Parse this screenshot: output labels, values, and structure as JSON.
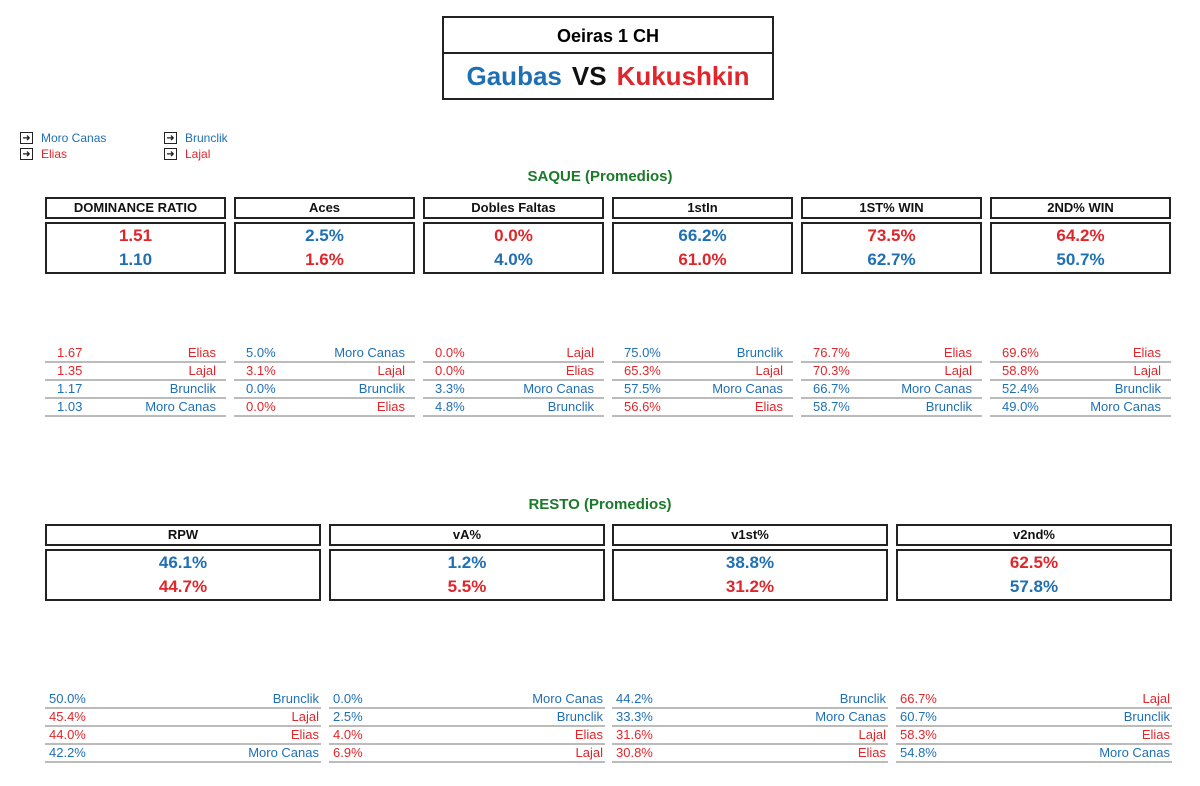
{
  "header": {
    "tournament": "Oeiras 1 CH",
    "player1": "Gaubas",
    "vs": "VS",
    "player2": "Kukushkin"
  },
  "legend": [
    {
      "label": "Moro Canas",
      "color": "blue"
    },
    {
      "label": "Elias",
      "color": "red"
    },
    {
      "label": "Brunclik",
      "color": "blue"
    },
    {
      "label": "Lajal",
      "color": "red"
    }
  ],
  "saque": {
    "title": "SAQUE (Promedios)",
    "stats": [
      {
        "label": "DOMINANCE RATIO",
        "v1": "1.51",
        "c1": "red",
        "v2": "1.10",
        "c2": "blue",
        "rank": [
          [
            "1.67",
            "Elias",
            "red"
          ],
          [
            "1.35",
            "Lajal",
            "red"
          ],
          [
            "1.17",
            "Brunclik",
            "blue"
          ],
          [
            "1.03",
            "Moro Canas",
            "blue"
          ]
        ]
      },
      {
        "label": "Aces",
        "v1": "2.5%",
        "c1": "blue",
        "v2": "1.6%",
        "c2": "red",
        "rank": [
          [
            "5.0%",
            "Moro Canas",
            "blue"
          ],
          [
            "3.1%",
            "Lajal",
            "red"
          ],
          [
            "0.0%",
            "Brunclik",
            "blue"
          ],
          [
            "0.0%",
            "Elias",
            "red"
          ]
        ]
      },
      {
        "label": "Dobles Faltas",
        "v1": "0.0%",
        "c1": "red",
        "v2": "4.0%",
        "c2": "blue",
        "rank": [
          [
            "0.0%",
            "Lajal",
            "red"
          ],
          [
            "0.0%",
            "Elias",
            "red"
          ],
          [
            "3.3%",
            "Moro Canas",
            "blue"
          ],
          [
            "4.8%",
            "Brunclik",
            "blue"
          ]
        ]
      },
      {
        "label": "1stIn",
        "v1": "66.2%",
        "c1": "blue",
        "v2": "61.0%",
        "c2": "red",
        "rank": [
          [
            "75.0%",
            "Brunclik",
            "blue"
          ],
          [
            "65.3%",
            "Lajal",
            "red"
          ],
          [
            "57.5%",
            "Moro Canas",
            "blue"
          ],
          [
            "56.6%",
            "Elias",
            "red"
          ]
        ]
      },
      {
        "label": "1ST% WIN",
        "v1": "73.5%",
        "c1": "red",
        "v2": "62.7%",
        "c2": "blue",
        "rank": [
          [
            "76.7%",
            "Elias",
            "red"
          ],
          [
            "70.3%",
            "Lajal",
            "red"
          ],
          [
            "66.7%",
            "Moro Canas",
            "blue"
          ],
          [
            "58.7%",
            "Brunclik",
            "blue"
          ]
        ]
      },
      {
        "label": "2ND% WIN",
        "v1": "64.2%",
        "c1": "red",
        "v2": "50.7%",
        "c2": "blue",
        "rank": [
          [
            "69.6%",
            "Elias",
            "red"
          ],
          [
            "58.8%",
            "Lajal",
            "red"
          ],
          [
            "52.4%",
            "Brunclik",
            "blue"
          ],
          [
            "49.0%",
            "Moro Canas",
            "blue"
          ]
        ]
      }
    ]
  },
  "resto": {
    "title": "RESTO (Promedios)",
    "stats": [
      {
        "label": "RPW",
        "v1": "46.1%",
        "c1": "blue",
        "v2": "44.7%",
        "c2": "red",
        "rank": [
          [
            "50.0%",
            "Brunclik",
            "blue"
          ],
          [
            "45.4%",
            "Lajal",
            "red"
          ],
          [
            "44.0%",
            "Elias",
            "red"
          ],
          [
            "42.2%",
            "Moro Canas",
            "blue"
          ]
        ]
      },
      {
        "label": "vA%",
        "v1": "1.2%",
        "c1": "blue",
        "v2": "5.5%",
        "c2": "red",
        "rank": [
          [
            "0.0%",
            "Moro Canas",
            "blue"
          ],
          [
            "2.5%",
            "Brunclik",
            "blue"
          ],
          [
            "4.0%",
            "Elias",
            "red"
          ],
          [
            "6.9%",
            "Lajal",
            "red"
          ]
        ]
      },
      {
        "label": "v1st%",
        "v1": "38.8%",
        "c1": "blue",
        "v2": "31.2%",
        "c2": "red",
        "rank": [
          [
            "44.2%",
            "Brunclik",
            "blue"
          ],
          [
            "33.3%",
            "Moro Canas",
            "blue"
          ],
          [
            "31.6%",
            "Lajal",
            "red"
          ],
          [
            "30.8%",
            "Elias",
            "red"
          ]
        ]
      },
      {
        "label": "v2nd%",
        "v1": "62.5%",
        "c1": "red",
        "v2": "57.8%",
        "c2": "blue",
        "rank": [
          [
            "66.7%",
            "Lajal",
            "red"
          ],
          [
            "60.7%",
            "Brunclik",
            "blue"
          ],
          [
            "58.3%",
            "Elias",
            "red"
          ],
          [
            "54.8%",
            "Moro Canas",
            "blue"
          ]
        ]
      }
    ]
  }
}
